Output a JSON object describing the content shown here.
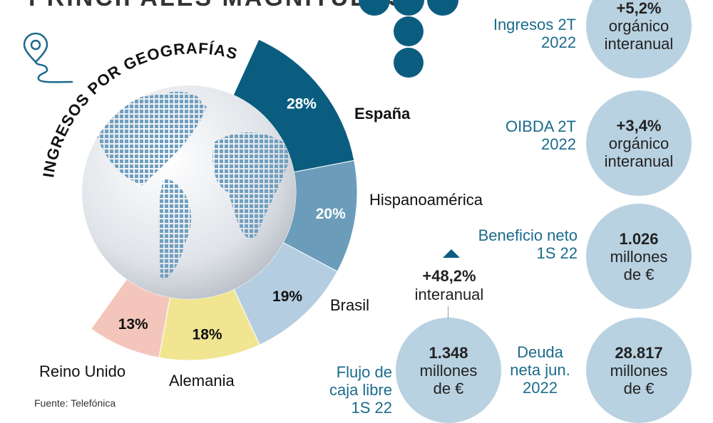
{
  "title": "PRINCIPALES MAGNITUDES",
  "chart_data": {
    "type": "pie",
    "title": "INGRESOS POR GEOGRAFÍAS",
    "categories": [
      "España",
      "Hispanoamérica",
      "Brasil",
      "Alemania",
      "Reino Unido"
    ],
    "values": [
      28,
      20,
      19,
      18,
      13
    ],
    "labels": [
      "28%",
      "20%",
      "19%",
      "18%",
      "13%"
    ],
    "colors": [
      "#0b5d80",
      "#6b9dbb",
      "#b4cde0",
      "#f1e592",
      "#f4c6bb"
    ]
  },
  "metrics": [
    {
      "label": "Ingresos 2T 2022",
      "value": "+5,2%",
      "unit": "orgánico interanual"
    },
    {
      "label": "OIBDA 2T 2022",
      "value": "+3,4%",
      "unit": "orgánico interanual"
    },
    {
      "label": "Beneficio neto 1S 22",
      "value": "1.026",
      "unit": "millones de €"
    },
    {
      "label": "Deuda neta jun. 2022",
      "value": "28.817",
      "unit": "millones de €"
    },
    {
      "label": "Flujo de caja libre 1S 22",
      "value": "1.348",
      "unit": "millones de €"
    }
  ],
  "fcf_change": {
    "value": "+48,2%",
    "unit": "interanual"
  },
  "source": "Fuente: Telefónica",
  "colors": {
    "accent": "#0b5d80",
    "circle": "#b9d2e2",
    "label": "#1c6b8c"
  }
}
